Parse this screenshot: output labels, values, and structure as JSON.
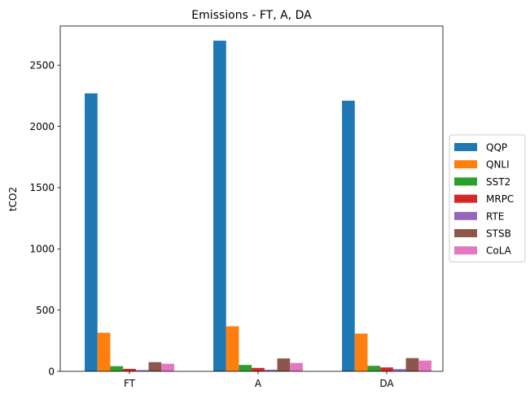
{
  "chart_data": {
    "type": "bar",
    "title": "Emissions - FT, A, DA",
    "xlabel": "",
    "ylabel": "tCO2",
    "categories": [
      "FT",
      "A",
      "DA"
    ],
    "ylim": [
      0,
      2820
    ],
    "yticks": [
      0,
      500,
      1000,
      1500,
      2000,
      2500
    ],
    "grid": false,
    "legend_position": "center-right, outside plot",
    "series": [
      {
        "name": "QQP",
        "color": "#1f77b4",
        "values": [
          2270,
          2700,
          2210
        ]
      },
      {
        "name": "QNLI",
        "color": "#ff7f0e",
        "values": [
          315,
          368,
          308
        ]
      },
      {
        "name": "SST2",
        "color": "#2ca02c",
        "values": [
          42,
          52,
          45
        ]
      },
      {
        "name": "MRPC",
        "color": "#d62728",
        "values": [
          20,
          28,
          32
        ]
      },
      {
        "name": "RTE",
        "color": "#9467bd",
        "values": [
          10,
          13,
          18
        ]
      },
      {
        "name": "STSB",
        "color": "#8c564b",
        "values": [
          75,
          105,
          108
        ]
      },
      {
        "name": "CoLA",
        "color": "#e377c2",
        "values": [
          62,
          68,
          88
        ]
      }
    ]
  }
}
